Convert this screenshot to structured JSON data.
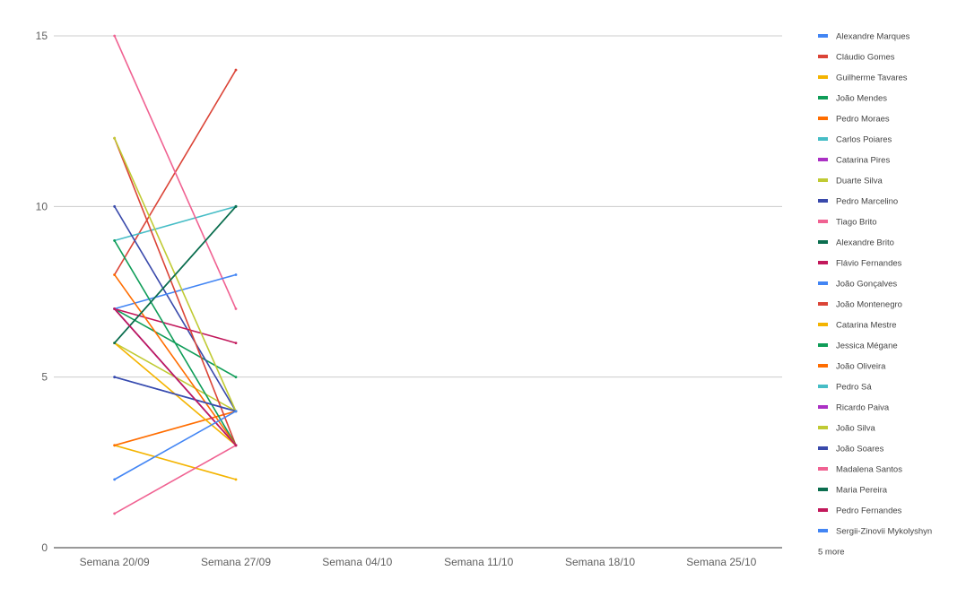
{
  "chart_data": {
    "type": "line",
    "title": "",
    "xlabel": "",
    "ylabel": "",
    "categories": [
      "Semana 20/09",
      "Semana 27/09",
      "Semana 04/10",
      "Semana 11/10",
      "Semana 18/10",
      "Semana 25/10"
    ],
    "ylim": [
      0,
      15
    ],
    "yticks": [
      0,
      5,
      10,
      15
    ],
    "grid": true,
    "legend_position": "right",
    "legend_more_text": "5 more",
    "series": [
      {
        "name": "Alexandre Marques",
        "color": "#4285f4",
        "values": [
          5,
          4,
          null,
          null,
          null,
          null
        ]
      },
      {
        "name": "Cláudio Gomes",
        "color": "#db4437",
        "values": [
          8,
          14,
          null,
          null,
          null,
          null
        ]
      },
      {
        "name": "Guilherme Tavares",
        "color": "#f4b400",
        "values": [
          3,
          2,
          null,
          null,
          null,
          null
        ]
      },
      {
        "name": "João Mendes",
        "color": "#0f9d58",
        "values": [
          7,
          5,
          null,
          null,
          null,
          null
        ]
      },
      {
        "name": "Pedro Moraes",
        "color": "#ff6d00",
        "values": [
          3,
          4,
          null,
          null,
          null,
          null
        ]
      },
      {
        "name": "Carlos Poiares",
        "color": "#46bdc6",
        "values": [
          9,
          10,
          null,
          null,
          null,
          null
        ]
      },
      {
        "name": "Catarina Pires",
        "color": "#ab30c4",
        "values": [
          7,
          3,
          null,
          null,
          null,
          null
        ]
      },
      {
        "name": "Duarte Silva",
        "color": "#c0ca33",
        "values": [
          6,
          4,
          null,
          null,
          null,
          null
        ]
      },
      {
        "name": "Pedro Marcelino",
        "color": "#3949ab",
        "values": [
          10,
          4,
          null,
          null,
          null,
          null
        ]
      },
      {
        "name": "Tiago Brito",
        "color": "#f06292",
        "values": [
          15,
          7,
          null,
          null,
          null,
          null
        ]
      },
      {
        "name": "Alexandre Brito",
        "color": "#0b6e4f",
        "values": [
          6,
          10,
          null,
          null,
          null,
          null
        ]
      },
      {
        "name": "Flávio Fernandes",
        "color": "#c2185b",
        "values": [
          7,
          6,
          null,
          null,
          null,
          null
        ]
      },
      {
        "name": "João Gonçalves",
        "color": "#4285f4",
        "values": [
          7,
          8,
          null,
          null,
          null,
          null
        ]
      },
      {
        "name": "João Montenegro",
        "color": "#db4437",
        "values": [
          12,
          3,
          null,
          null,
          null,
          null
        ]
      },
      {
        "name": "Catarina Mestre",
        "color": "#f4b400",
        "values": [
          6,
          3,
          null,
          null,
          null,
          null
        ]
      },
      {
        "name": "Jessica Mégane",
        "color": "#0f9d58",
        "values": [
          9,
          3,
          null,
          null,
          null,
          null
        ]
      },
      {
        "name": "João Oliveira",
        "color": "#ff6d00",
        "values": [
          8,
          3,
          null,
          null,
          null,
          null
        ]
      },
      {
        "name": "Pedro Sá",
        "color": "#46bdc6",
        "values": [
          7,
          3,
          null,
          null,
          null,
          null
        ]
      },
      {
        "name": "Ricardo Paiva",
        "color": "#ab30c4",
        "values": [
          7,
          3,
          null,
          null,
          null,
          null
        ]
      },
      {
        "name": "João Silva",
        "color": "#c0ca33",
        "values": [
          12,
          4,
          null,
          null,
          null,
          null
        ]
      },
      {
        "name": "João Soares",
        "color": "#3949ab",
        "values": [
          5,
          4,
          null,
          null,
          null,
          null
        ]
      },
      {
        "name": "Madalena Santos",
        "color": "#f06292",
        "values": [
          1,
          3,
          null,
          null,
          null,
          null
        ]
      },
      {
        "name": "Maria Pereira",
        "color": "#0b6e4f",
        "values": [
          6,
          10,
          null,
          null,
          null,
          null
        ]
      },
      {
        "name": "Pedro Fernandes",
        "color": "#c2185b",
        "values": [
          7,
          3,
          null,
          null,
          null,
          null
        ]
      },
      {
        "name": "Sergii-Zinovii Mykolyshyn",
        "color": "#4285f4",
        "values": [
          2,
          4,
          null,
          null,
          null,
          null
        ]
      }
    ]
  }
}
